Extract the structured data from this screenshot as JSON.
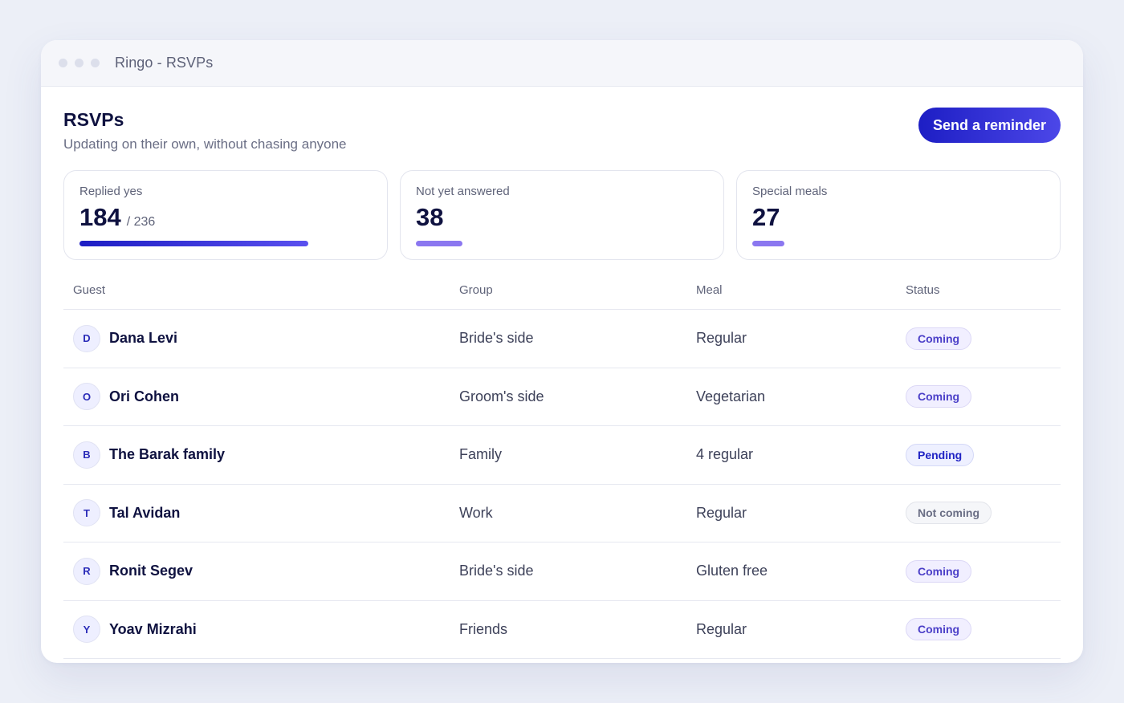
{
  "window": {
    "title": "Ringo - RSVPs"
  },
  "header": {
    "title": "RSVPs",
    "subtitle": "Updating on their own, without chasing anyone",
    "cta_label": "Send a reminder"
  },
  "stats": [
    {
      "label": "Replied yes",
      "value": "184",
      "total": "/ 236",
      "progress": 0.78
    },
    {
      "label": "Not yet answered",
      "value": "38"
    },
    {
      "label": "Special meals",
      "value": "27"
    }
  ],
  "table": {
    "columns": [
      "Guest",
      "Group",
      "Meal",
      "Status"
    ],
    "rows": [
      {
        "initial": "D",
        "name": "Dana Levi",
        "group": "Bride's side",
        "meal": "Regular",
        "status": "Coming"
      },
      {
        "initial": "O",
        "name": "Ori Cohen",
        "group": "Groom's side",
        "meal": "Vegetarian",
        "status": "Coming"
      },
      {
        "initial": "B",
        "name": "The Barak family",
        "group": "Family",
        "meal": "4 regular",
        "status": "Pending"
      },
      {
        "initial": "T",
        "name": "Tal Avidan",
        "group": "Work",
        "meal": "Regular",
        "status": "Not coming"
      },
      {
        "initial": "R",
        "name": "Ronit Segev",
        "group": "Bride's side",
        "meal": "Gluten free",
        "status": "Coming"
      },
      {
        "initial": "Y",
        "name": "Yoav Mizrahi",
        "group": "Friends",
        "meal": "Regular",
        "status": "Coming"
      }
    ]
  },
  "colors": {
    "accent": "#1d1ec4",
    "accent_light": "#8b77f0",
    "status_coming": "#4b3fc8",
    "status_pending": "#2023c4",
    "status_not_coming": "#6a6e85"
  }
}
